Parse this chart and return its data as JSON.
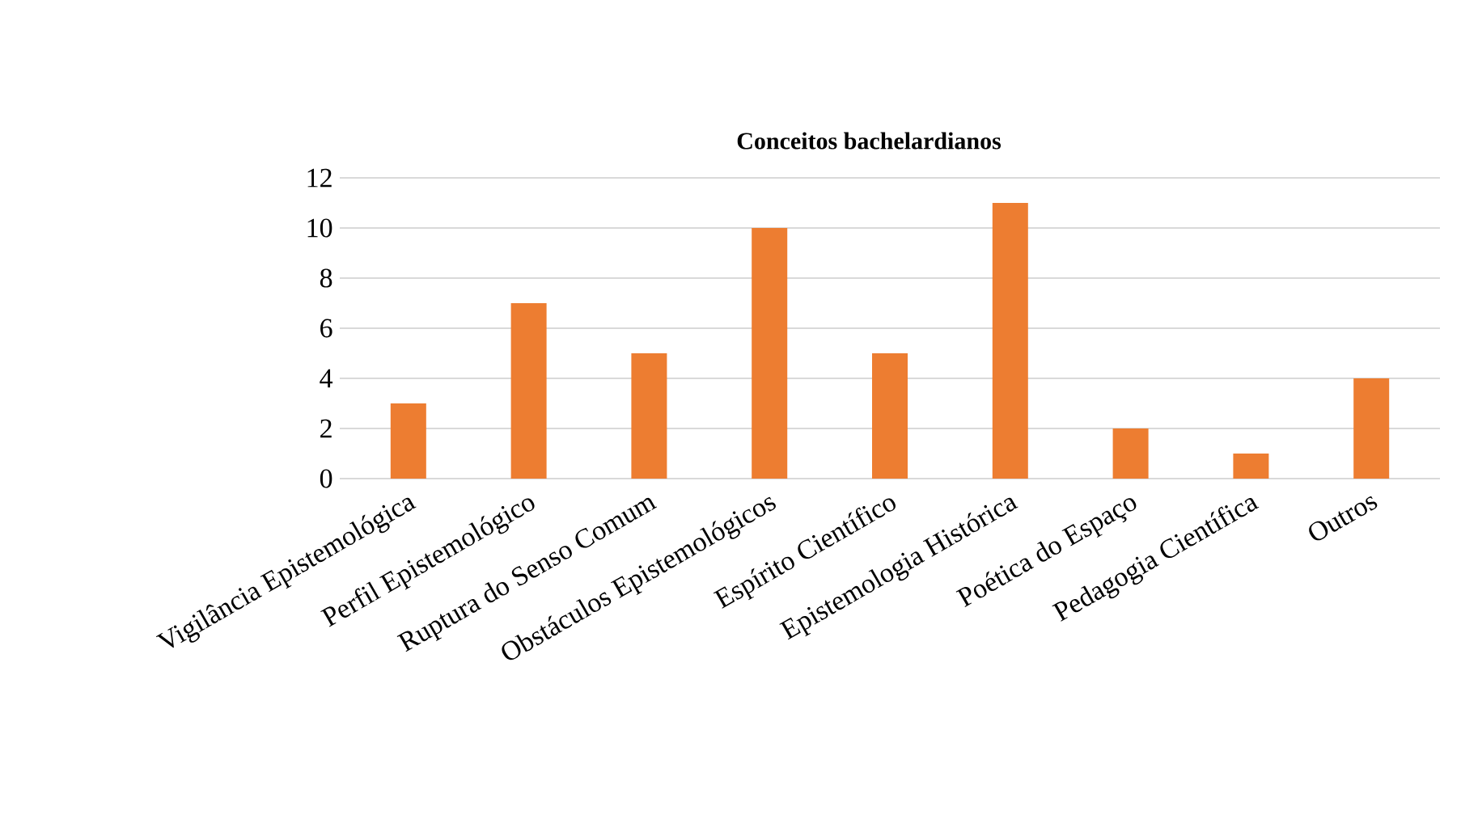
{
  "chart_data": {
    "type": "bar",
    "title": "Conceitos bachelardianos",
    "categories": [
      "Vigilância Epistemológica",
      "Perfil Epistemológico",
      "Ruptura do Senso Comum",
      "Obstáculos Epistemológicos",
      "Espírito Científico",
      "Epistemologia Histórica",
      "Poética do Espaço",
      "Pedagogia Científica",
      "Outros"
    ],
    "values": [
      3,
      7,
      5,
      10,
      5,
      11,
      2,
      1,
      4
    ],
    "color": "#ed7d31",
    "ylim": [
      0,
      12
    ],
    "yticks": [
      0,
      2,
      4,
      6,
      8,
      10,
      12
    ],
    "grid": "y"
  }
}
